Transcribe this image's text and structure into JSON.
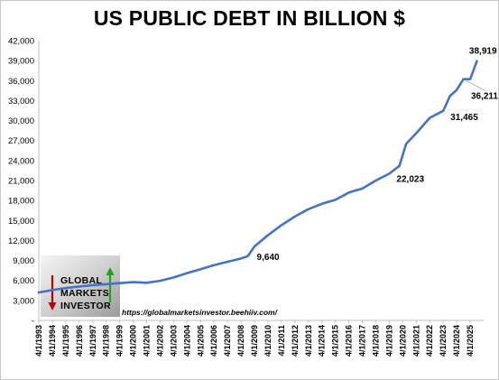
{
  "chart_data": {
    "type": "line",
    "title": "US PUBLIC DEBT IN BILLION $",
    "xlabel": "",
    "ylabel": "",
    "ylim": [
      0,
      42000
    ],
    "y_ticks": [
      "-",
      "3,000",
      "6,000",
      "9,000",
      "12,000",
      "15,000",
      "18,000",
      "21,000",
      "24,000",
      "27,000",
      "30,000",
      "33,000",
      "36,000",
      "39,000",
      "42,000"
    ],
    "x_ticks": [
      "4/1/1993",
      "4/1/1994",
      "4/1/1995",
      "4/1/1996",
      "4/1/1997",
      "4/1/1998",
      "4/1/1999",
      "4/1/2000",
      "4/1/2001",
      "4/1/2002",
      "4/1/2003",
      "4/1/2004",
      "4/1/2005",
      "4/1/2006",
      "4/1/2007",
      "4/1/2008",
      "4/1/2009",
      "4/1/2010",
      "4/1/2011",
      "4/1/2012",
      "4/1/2013",
      "4/1/2014",
      "4/1/2015",
      "4/1/2016",
      "4/1/2017",
      "4/1/2018",
      "4/1/2019",
      "4/1/2020",
      "4/1/2021",
      "4/1/2022",
      "4/1/2023",
      "4/1/2024",
      "4/1/2025"
    ],
    "grid": false,
    "legend": "none",
    "line_color": "#4472C4",
    "series": [
      {
        "values": [
          {
            "x": "4/1/1993",
            "y": 4200
          },
          {
            "x": "4/1/1994",
            "y": 4550
          },
          {
            "x": "4/1/1995",
            "y": 4850
          },
          {
            "x": "4/1/1996",
            "y": 5100
          },
          {
            "x": "4/1/1997",
            "y": 5300
          },
          {
            "x": "4/1/1998",
            "y": 5450
          },
          {
            "x": "4/1/1999",
            "y": 5600
          },
          {
            "x": "4/1/2000",
            "y": 5750
          },
          {
            "x": "4/1/2001",
            "y": 5650
          },
          {
            "x": "4/1/2002",
            "y": 5950
          },
          {
            "x": "4/1/2003",
            "y": 6450
          },
          {
            "x": "4/1/2004",
            "y": 7100
          },
          {
            "x": "4/1/2005",
            "y": 7700
          },
          {
            "x": "4/1/2006",
            "y": 8300
          },
          {
            "x": "4/1/2007",
            "y": 8800
          },
          {
            "x": "4/1/2008",
            "y": 9300
          },
          {
            "x": "10/1/2008",
            "y": 9640
          },
          {
            "x": "4/1/2009",
            "y": 11100
          },
          {
            "x": "4/1/2010",
            "y": 12800
          },
          {
            "x": "4/1/2011",
            "y": 14300
          },
          {
            "x": "4/1/2012",
            "y": 15600
          },
          {
            "x": "4/1/2013",
            "y": 16700
          },
          {
            "x": "4/1/2014",
            "y": 17500
          },
          {
            "x": "4/1/2015",
            "y": 18100
          },
          {
            "x": "4/1/2016",
            "y": 19200
          },
          {
            "x": "4/1/2017",
            "y": 19800
          },
          {
            "x": "4/1/2018",
            "y": 21000
          },
          {
            "x": "4/1/2019",
            "y": 22023
          },
          {
            "x": "1/1/2020",
            "y": 23200
          },
          {
            "x": "7/1/2020",
            "y": 26500
          },
          {
            "x": "4/1/2021",
            "y": 28100
          },
          {
            "x": "4/1/2022",
            "y": 30400
          },
          {
            "x": "4/1/2023",
            "y": 31465
          },
          {
            "x": "10/1/2023",
            "y": 33700
          },
          {
            "x": "4/1/2024",
            "y": 34600
          },
          {
            "x": "10/1/2024",
            "y": 36211
          },
          {
            "x": "4/1/2025",
            "y": 36220
          },
          {
            "x": "10/1/2025",
            "y": 38919
          }
        ]
      }
    ],
    "annotations": [
      {
        "label": "9,640",
        "x": "10/1/2008",
        "y": 9640
      },
      {
        "label": "22,023",
        "x": "4/1/2019",
        "y": 22023
      },
      {
        "label": "31,465",
        "x": "4/1/2023",
        "y": 31465
      },
      {
        "label": "36,211",
        "x": "10/1/2024",
        "y": 36211
      },
      {
        "label": "38,919",
        "x": "10/1/2025",
        "y": 38919
      }
    ]
  },
  "watermark": {
    "logo_lines": [
      "GLOBAL",
      "MARKETS",
      "INVESTOR"
    ],
    "url": "https://globalmarketsinvestor.beehiiv.com/"
  }
}
